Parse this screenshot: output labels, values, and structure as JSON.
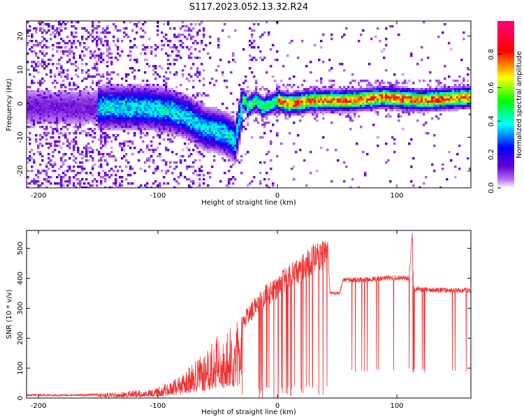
{
  "title": "S117.2023.052.13.32.R24",
  "chart_data": [
    {
      "type": "heatmap",
      "xlabel": "Height of straight line (km)",
      "ylabel": "Frequency (Hz)",
      "xlim": [
        -210,
        162
      ],
      "ylim": [
        -25,
        24.5
      ],
      "xticks": [
        -200,
        -100,
        0,
        100
      ],
      "yticks": [
        -20,
        -10,
        0,
        10,
        20
      ],
      "colorbar": {
        "label": "Normalized spectral amplitude",
        "range": [
          0,
          1
        ],
        "ticks": [
          0.0,
          0.2,
          0.4,
          0.6,
          0.8
        ],
        "tick_labels": [
          "0.0",
          "0.2",
          "0.4",
          "0.6",
          "0.8"
        ],
        "colormap": [
          "#ffffff",
          "#b46ef0",
          "#6400d2",
          "#0000ff",
          "#00ffff",
          "#00ff00",
          "#ffff00",
          "#ff0000",
          "#ff007f"
        ]
      },
      "ridge": [
        [
          -145,
          -1
        ],
        [
          -130,
          -1
        ],
        [
          -110,
          -1
        ],
        [
          -90,
          -2
        ],
        [
          -75,
          -4
        ],
        [
          -62,
          -7
        ],
        [
          -50,
          -8
        ],
        [
          -42,
          -9
        ],
        [
          -35,
          -11
        ],
        [
          -28,
          2
        ],
        [
          -25,
          -1
        ],
        [
          -22,
          0
        ],
        [
          -18,
          1
        ],
        [
          -12,
          -1
        ],
        [
          -5,
          0
        ],
        [
          0,
          1
        ],
        [
          10,
          0
        ],
        [
          30,
          1
        ],
        [
          60,
          1
        ],
        [
          90,
          2
        ],
        [
          120,
          1
        ],
        [
          162,
          2
        ]
      ]
    },
    {
      "type": "line",
      "xlabel": "Height of straight line (km)",
      "ylabel": "SNR (10 * v/v)",
      "xlim": [
        -210,
        162
      ],
      "ylim": [
        0,
        560
      ],
      "xticks": [
        -200,
        -100,
        0,
        100
      ],
      "yticks": [
        0,
        100,
        200,
        300,
        400,
        500
      ],
      "line_color": "#ee3333",
      "envelope": [
        [
          -210,
          14
        ],
        [
          -180,
          12
        ],
        [
          -160,
          14
        ],
        [
          -140,
          18
        ],
        [
          -130,
          22
        ],
        [
          -120,
          26
        ],
        [
          -110,
          30
        ],
        [
          -100,
          40
        ],
        [
          -90,
          55
        ],
        [
          -80,
          85
        ],
        [
          -70,
          125
        ],
        [
          -60,
          160
        ],
        [
          -50,
          210
        ],
        [
          -40,
          240
        ],
        [
          -30,
          280
        ],
        [
          -20,
          330
        ],
        [
          -10,
          380
        ],
        [
          0,
          410
        ],
        [
          10,
          450
        ],
        [
          20,
          480
        ],
        [
          30,
          520
        ],
        [
          42,
          535
        ],
        [
          44,
          350
        ],
        [
          52,
          350
        ],
        [
          55,
          395
        ],
        [
          70,
          395
        ],
        [
          85,
          400
        ],
        [
          95,
          402
        ],
        [
          110,
          400
        ],
        [
          113,
          545
        ],
        [
          114,
          365
        ],
        [
          130,
          360
        ],
        [
          162,
          360
        ]
      ]
    }
  ]
}
